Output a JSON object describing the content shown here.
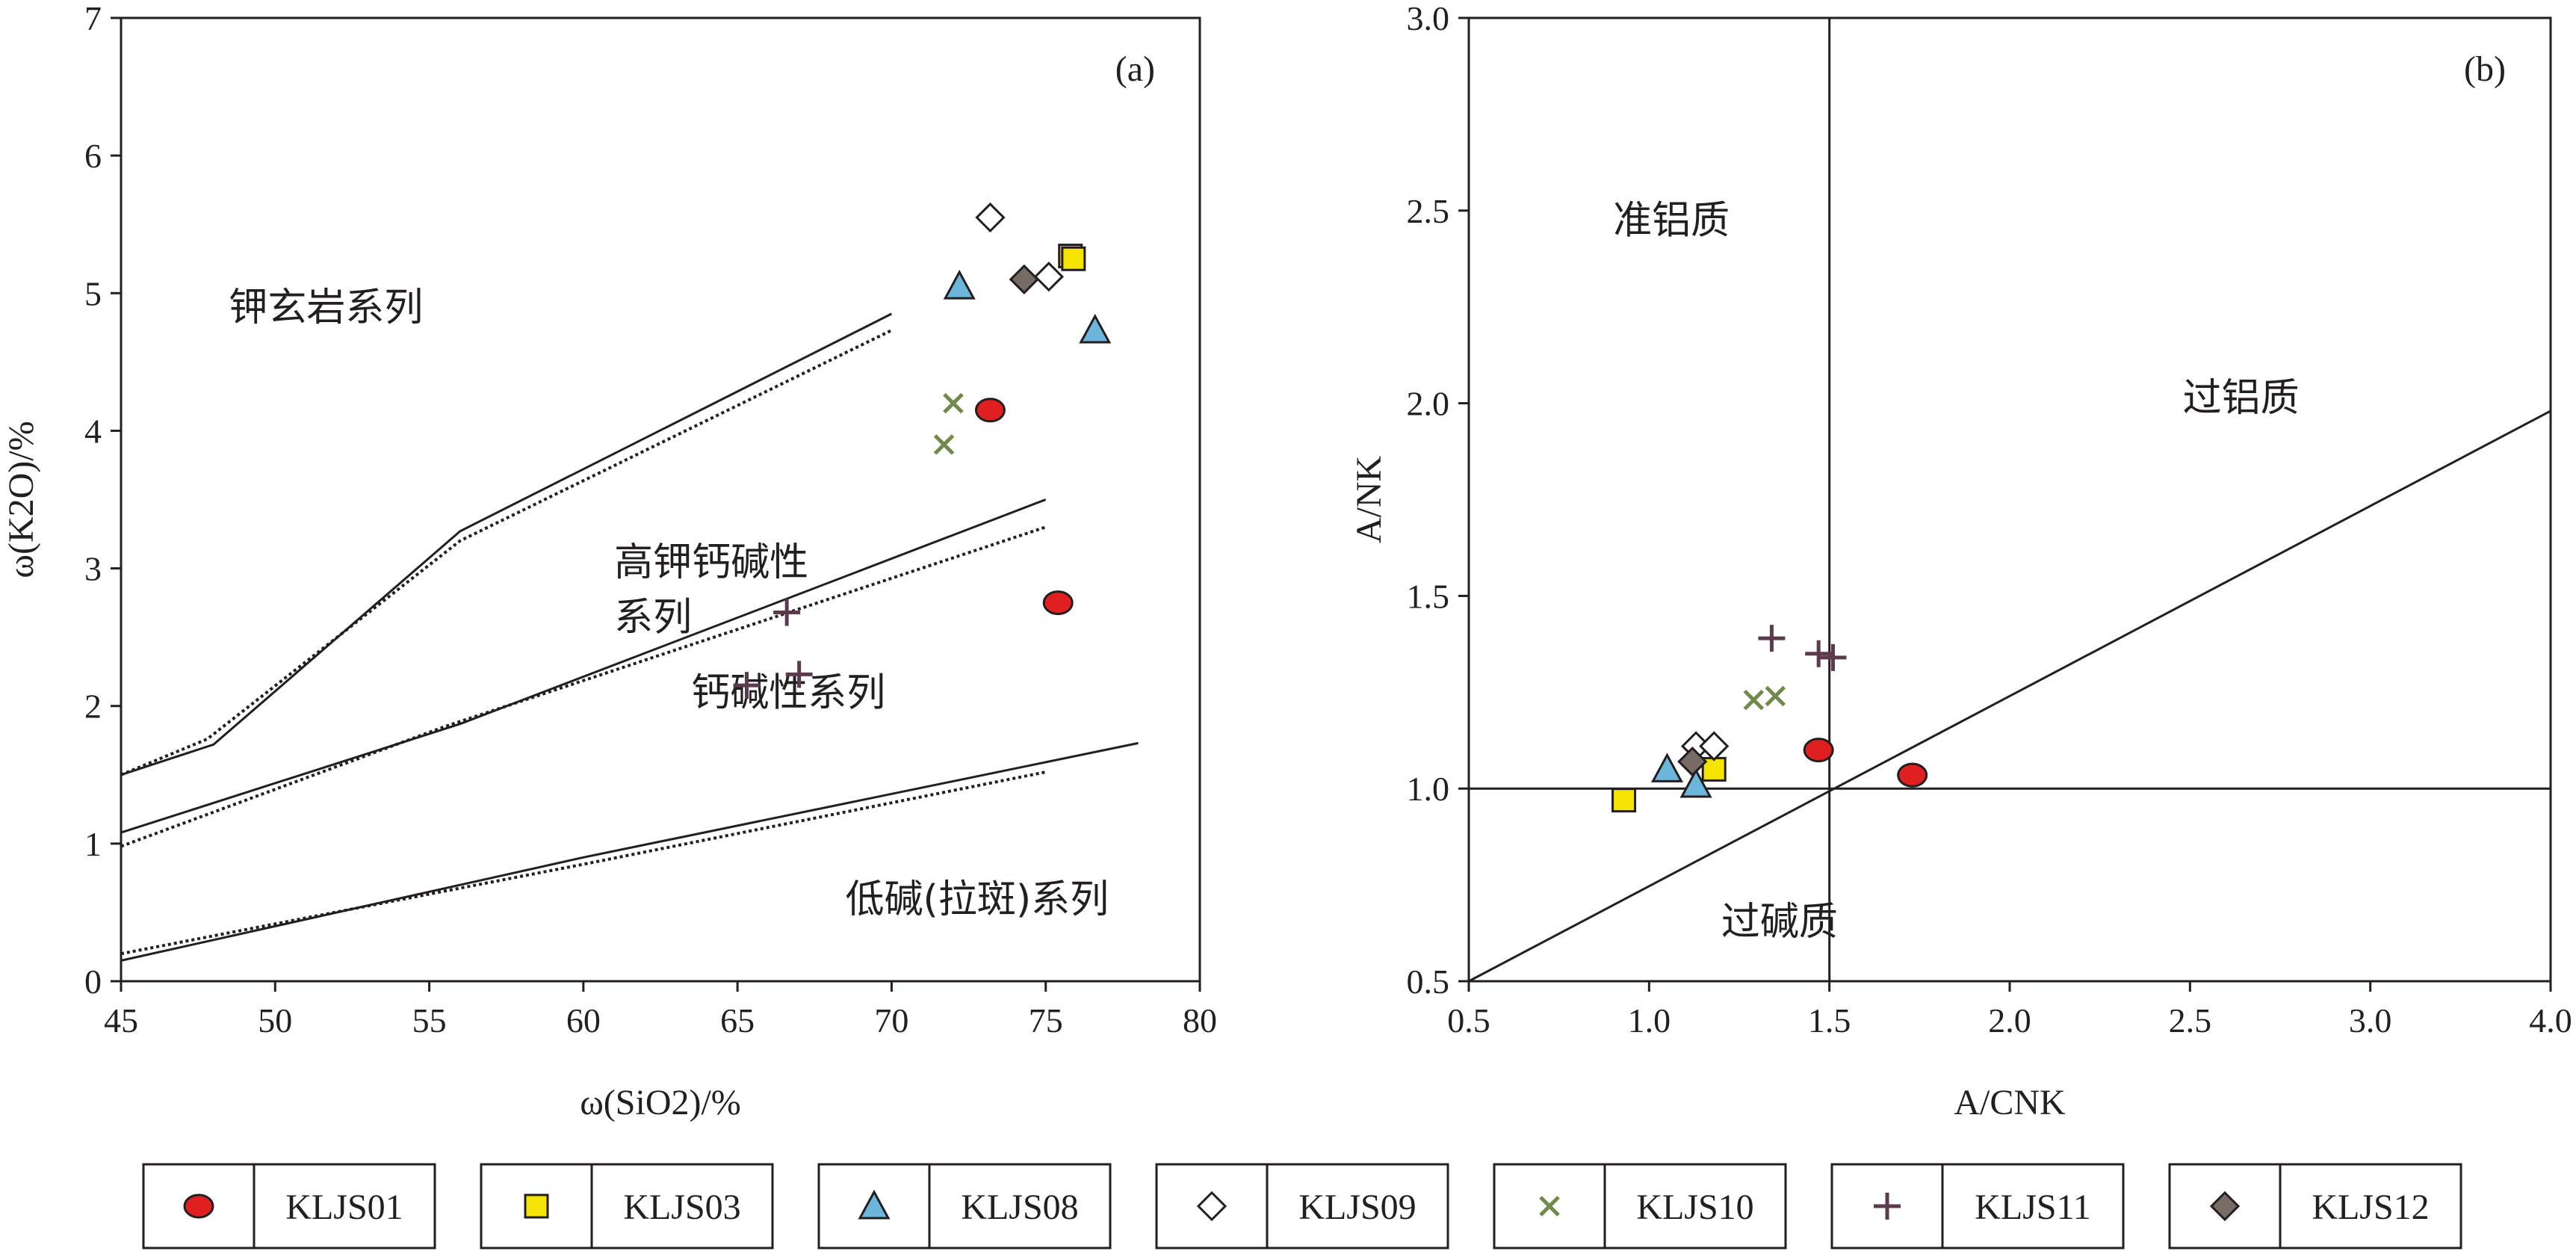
{
  "chart_data": [
    {
      "type": "scatter",
      "panel_label": "(a)",
      "xlabel": "ω(SiO2)/%",
      "ylabel": "ω(K2O)/%",
      "xlim": [
        45,
        80
      ],
      "ylim": [
        0,
        7
      ],
      "xticks": [
        "45",
        "50",
        "55",
        "60",
        "65",
        "70",
        "75",
        "80"
      ],
      "yticks": [
        "0",
        "1",
        "2",
        "3",
        "4",
        "5",
        "6",
        "7"
      ],
      "grid": false,
      "regions": [
        {
          "label": "钾玄岩系列",
          "x": 48.5,
          "y": 4.8
        },
        {
          "label": "高钾钙碱性",
          "x": 61,
          "y": 2.95
        },
        {
          "label": "系列",
          "x": 61,
          "y": 2.55
        },
        {
          "label": "钙碱性系列",
          "x": 63.5,
          "y": 2.0
        },
        {
          "label": "低碱(拉斑)系列",
          "x": 68.5,
          "y": 0.5
        }
      ],
      "boundaries": [
        {
          "style": "solid",
          "x": [
            45,
            48,
            56,
            70
          ],
          "y": [
            1.5,
            1.72,
            3.27,
            4.85
          ]
        },
        {
          "style": "dotted",
          "x": [
            45,
            47.8,
            56,
            70
          ],
          "y": [
            1.5,
            1.76,
            3.2,
            4.73
          ]
        },
        {
          "style": "solid",
          "x": [
            45,
            56,
            75
          ],
          "y": [
            1.08,
            1.87,
            3.5
          ]
        },
        {
          "style": "dotted",
          "x": [
            45,
            55.5,
            75
          ],
          "y": [
            0.98,
            1.85,
            3.3
          ]
        },
        {
          "style": "solid",
          "x": [
            45,
            60,
            78
          ],
          "y": [
            0.15,
            0.9,
            1.73
          ]
        },
        {
          "style": "dotted",
          "x": [
            45,
            60,
            75
          ],
          "y": [
            0.2,
            0.85,
            1.52
          ]
        }
      ],
      "series": [
        {
          "name": "KLJS01",
          "marker": "circle",
          "color": "#e02020",
          "points": [
            [
              73.2,
              4.15
            ],
            [
              75.4,
              2.75
            ]
          ]
        },
        {
          "name": "KLJS03",
          "marker": "square",
          "color": "#f5e400",
          "points": [
            [
              75.8,
              5.27
            ],
            [
              75.9,
              5.25
            ]
          ]
        },
        {
          "name": "KLJS08",
          "marker": "triangle",
          "color": "#6cb6dc",
          "points": [
            [
              72.2,
              5.05
            ],
            [
              76.6,
              4.73
            ]
          ]
        },
        {
          "name": "KLJS09",
          "marker": "diamond",
          "color": "#ffffff",
          "points": [
            [
              73.2,
              5.55
            ],
            [
              75.1,
              5.12
            ]
          ]
        },
        {
          "name": "KLJS10",
          "marker": "x",
          "color": "#6f8a4a",
          "points": [
            [
              72.0,
              4.2
            ],
            [
              71.7,
              3.9
            ]
          ]
        },
        {
          "name": "KLJS11",
          "marker": "plus",
          "color": "#5c3b4c",
          "points": [
            [
              66.6,
              2.68
            ],
            [
              65.3,
              2.15
            ],
            [
              67.0,
              2.23
            ]
          ]
        },
        {
          "name": "KLJS12",
          "marker": "diamond",
          "color": "#766b65",
          "points": [
            [
              74.3,
              5.1
            ]
          ]
        }
      ]
    },
    {
      "type": "scatter",
      "panel_label": "(b)",
      "xlabel": "A/CNK",
      "ylabel": "A/NK",
      "xlim": [
        0.5,
        4.0
      ],
      "ylim": [
        0.5,
        3.0
      ],
      "xticks": [
        "0.5",
        "1.0",
        "1.5",
        "2.0",
        "2.5",
        "3.0",
        "4.0"
      ],
      "xtick_values": [
        0.5,
        1.0,
        1.5,
        2.0,
        2.5,
        3.0,
        4.0
      ],
      "yticks": [
        "0.5",
        "1.0",
        "1.5",
        "2.0",
        "2.5",
        "3.0"
      ],
      "grid": false,
      "note": "x axis is non-uniform: 3.0 and 4.0 are one tick interval apart",
      "regions": [
        {
          "label": "准铝质",
          "x": 0.9,
          "y": 2.44
        },
        {
          "label": "过铝质",
          "x": 2.48,
          "y": 1.98
        },
        {
          "label": "过碱质",
          "x": 1.2,
          "y": 0.62
        }
      ],
      "boundaries": [
        {
          "style": "solid",
          "x": [
            0.5,
            4.0
          ],
          "y": [
            1.0,
            1.0
          ]
        },
        {
          "style": "solid",
          "x": [
            1.5,
            1.5
          ],
          "y": [
            0.5,
            3.0
          ]
        },
        {
          "style": "solid",
          "x": [
            0.5,
            4.0
          ],
          "y": [
            0.5,
            1.98
          ]
        }
      ],
      "series": [
        {
          "name": "KLJS01",
          "marker": "circle",
          "color": "#e02020",
          "points": [
            [
              1.47,
              1.1
            ],
            [
              1.73,
              1.035
            ]
          ]
        },
        {
          "name": "KLJS03",
          "marker": "square",
          "color": "#f5e400",
          "points": [
            [
              0.93,
              0.97
            ],
            [
              1.18,
              1.05
            ]
          ]
        },
        {
          "name": "KLJS08",
          "marker": "triangle",
          "color": "#6cb6dc",
          "points": [
            [
              1.05,
              1.05
            ],
            [
              1.13,
              1.01
            ]
          ]
        },
        {
          "name": "KLJS09",
          "marker": "diamond",
          "color": "#ffffff",
          "points": [
            [
              1.13,
              1.11
            ],
            [
              1.18,
              1.11
            ]
          ]
        },
        {
          "name": "KLJS10",
          "marker": "x",
          "color": "#6f8a4a",
          "points": [
            [
              1.29,
              1.23
            ],
            [
              1.35,
              1.24
            ]
          ]
        },
        {
          "name": "KLJS11",
          "marker": "plus",
          "color": "#5c3b4c",
          "points": [
            [
              1.34,
              1.39
            ],
            [
              1.47,
              1.35
            ],
            [
              1.51,
              1.34
            ]
          ]
        },
        {
          "name": "KLJS12",
          "marker": "diamond",
          "color": "#766b65",
          "points": [
            [
              1.12,
              1.07
            ]
          ]
        }
      ]
    }
  ],
  "legend": {
    "placement": "bottom",
    "items": [
      {
        "label": "KLJS01",
        "marker": "circle",
        "color": "#e02020"
      },
      {
        "label": "KLJS03",
        "marker": "square",
        "color": "#f5e400"
      },
      {
        "label": "KLJS08",
        "marker": "triangle",
        "color": "#6cb6dc"
      },
      {
        "label": "KLJS09",
        "marker": "diamond",
        "color": "#ffffff"
      },
      {
        "label": "KLJS10",
        "marker": "x",
        "color": "#6f8a4a"
      },
      {
        "label": "KLJS11",
        "marker": "plus",
        "color": "#5c3b4c"
      },
      {
        "label": "KLJS12",
        "marker": "diamond",
        "color": "#766b65"
      }
    ]
  }
}
